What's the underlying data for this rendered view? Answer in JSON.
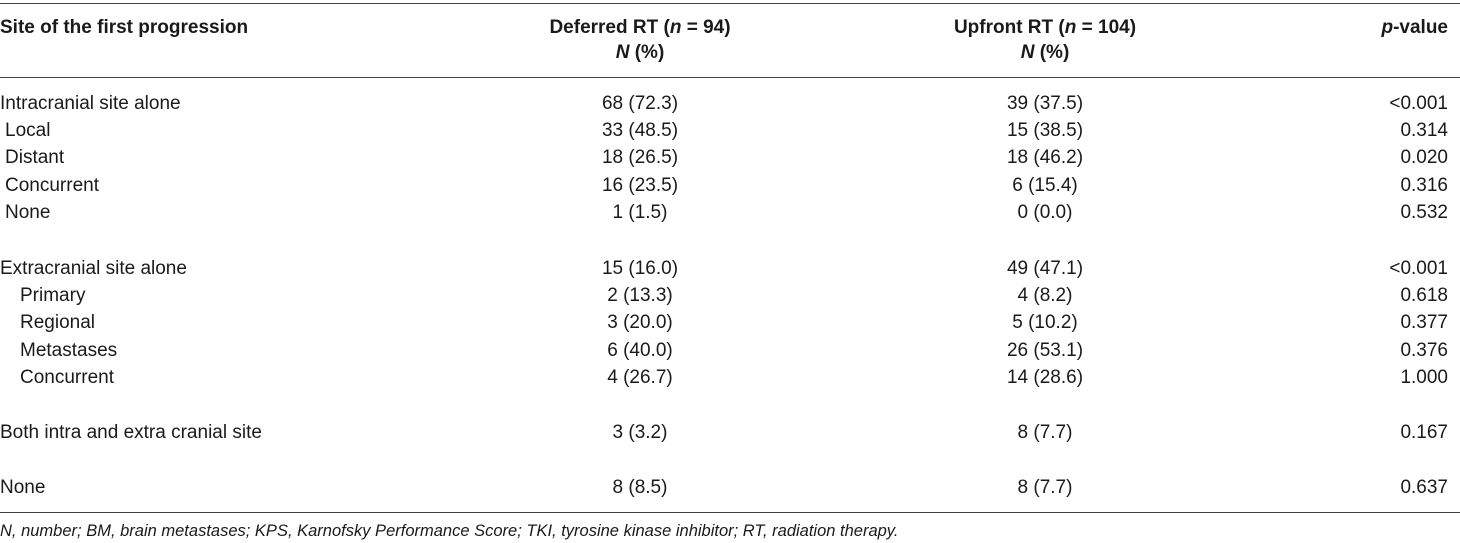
{
  "header": {
    "site": "Site of the first progression",
    "deferred_line1_pre": "Deferred RT (",
    "deferred_n_var": "n",
    "deferred_line1_post": " = 94)",
    "deferred_line2_var": "N",
    "deferred_line2_post": " (%)",
    "upfront_line1_pre": "Upfront RT (",
    "upfront_n_var": "n",
    "upfront_line1_post": " = 104)",
    "upfront_line2_var": "N",
    "upfront_line2_post": " (%)",
    "pvalue_var": "p",
    "pvalue_post": "-value"
  },
  "rows": [
    {
      "site": "Intracranial site alone",
      "deferred": "68 (72.3)",
      "upfront": "39 (37.5)",
      "p": "<0.001"
    },
    {
      "site": "Local",
      "deferred": "33 (48.5)",
      "upfront": "15 (38.5)",
      "p": "0.314"
    },
    {
      "site": "Distant",
      "deferred": "18 (26.5)",
      "upfront": "18 (46.2)",
      "p": "0.020"
    },
    {
      "site": "Concurrent",
      "deferred": "16 (23.5)",
      "upfront": "6 (15.4)",
      "p": "0.316"
    },
    {
      "site": "None",
      "deferred": "1 (1.5)",
      "upfront": "0 (0.0)",
      "p": "0.532"
    },
    {
      "site": "Extracranial site alone",
      "deferred": "15 (16.0)",
      "upfront": "49 (47.1)",
      "p": "<0.001"
    },
    {
      "site": "Primary",
      "deferred": "2 (13.3)",
      "upfront": "4 (8.2)",
      "p": "0.618"
    },
    {
      "site": "Regional",
      "deferred": "3 (20.0)",
      "upfront": "5 (10.2)",
      "p": "0.377"
    },
    {
      "site": "Metastases",
      "deferred": "6 (40.0)",
      "upfront": "26 (53.1)",
      "p": "0.376"
    },
    {
      "site": "Concurrent",
      "deferred": "4 (26.7)",
      "upfront": "14 (28.6)",
      "p": "1.000"
    },
    {
      "site": "Both intra and extra cranial site",
      "deferred": "3 (3.2)",
      "upfront": "8 (7.7)",
      "p": "0.167"
    },
    {
      "site": "None",
      "deferred": "8 (8.5)",
      "upfront": "8 (7.7)",
      "p": "0.637"
    }
  ],
  "footnote": "N, number; BM, brain metastases; KPS, Karnofsky Performance Score; TKI, tyrosine kinase inhibitor; RT, radiation therapy."
}
